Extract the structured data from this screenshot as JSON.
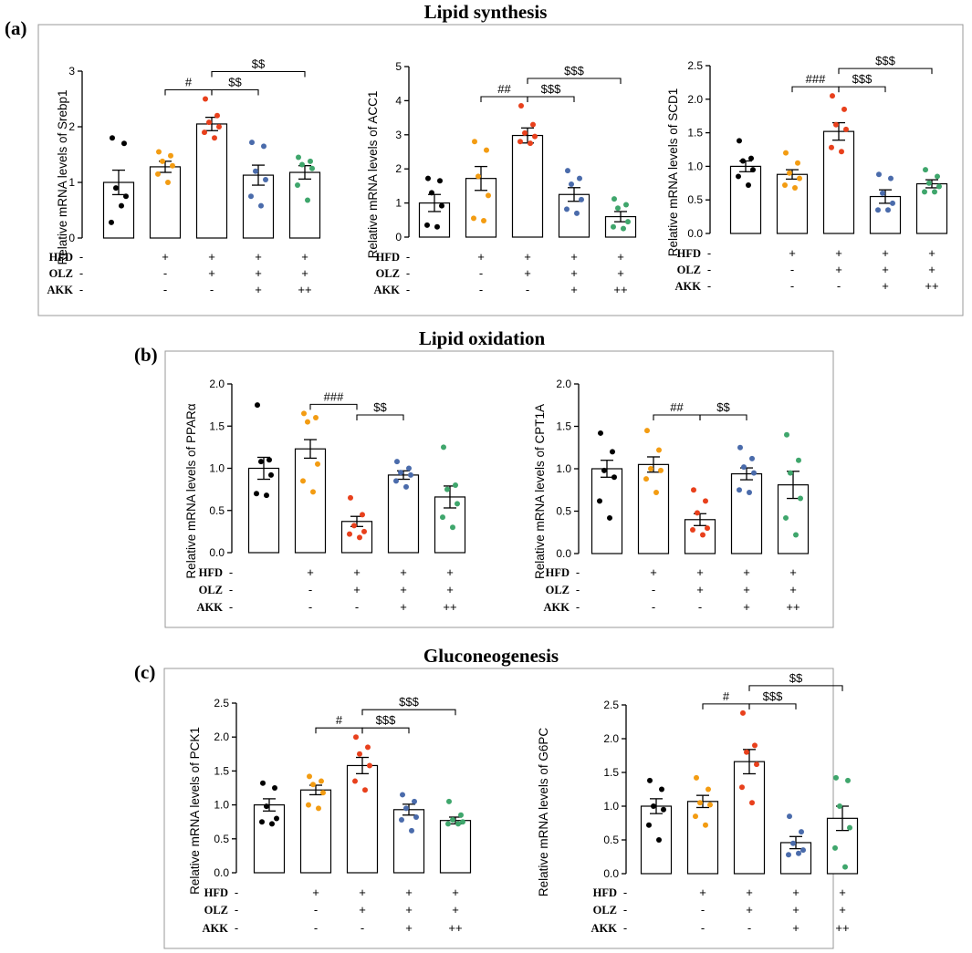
{
  "sections": [
    {
      "letter": "(a)",
      "title": "Lipid synthesis"
    },
    {
      "letter": "(b)",
      "title": "Lipid oxidation"
    },
    {
      "letter": "(c)",
      "title": "Gluconeogenesis"
    }
  ],
  "groups": {
    "colors": [
      "#000000",
      "#f39c12",
      "#e8401c",
      "#4a6bab",
      "#3fa66c"
    ],
    "row_labels": [
      "HFD",
      "OLZ",
      "AKK"
    ],
    "rows": [
      [
        "-",
        "+",
        "+",
        "+",
        "+"
      ],
      [
        "-",
        "-",
        "+",
        "+",
        "+"
      ],
      [
        "-",
        "-",
        "-",
        "+",
        "++"
      ]
    ]
  },
  "chart_data": [
    {
      "type": "bar",
      "section": 0,
      "ylabel": "Relative mRNA levels of Srebp1",
      "ylim": [
        0,
        3
      ],
      "yticks": [
        0,
        1,
        2,
        3
      ],
      "values": [
        1.0,
        1.28,
        2.05,
        1.13,
        1.18
      ],
      "errors": [
        0.22,
        0.1,
        0.12,
        0.18,
        0.12
      ],
      "points": [
        [
          1.8,
          1.7,
          0.9,
          0.75,
          0.28,
          0.58
        ],
        [
          1.55,
          1.48,
          1.38,
          1.3,
          1.15,
          1.0
        ],
        [
          2.5,
          2.2,
          2.08,
          2.0,
          1.9,
          1.8
        ],
        [
          1.72,
          1.65,
          1.2,
          1.05,
          0.75,
          0.58
        ],
        [
          1.45,
          1.38,
          1.32,
          1.25,
          0.95,
          0.68
        ]
      ],
      "significance": [
        {
          "from": 1,
          "to": 2,
          "label": "#",
          "level": 0
        },
        {
          "from": 2,
          "to": 3,
          "label": "$$",
          "level": 0
        },
        {
          "from": 2,
          "to": 4,
          "label": "$$",
          "level": 1
        }
      ]
    },
    {
      "type": "bar",
      "section": 0,
      "ylabel": "Relative mRNA levels of ACC1",
      "ylim": [
        0,
        5
      ],
      "yticks": [
        0,
        1,
        2,
        3,
        4,
        5
      ],
      "values": [
        1.0,
        1.72,
        2.98,
        1.25,
        0.6
      ],
      "errors": [
        0.25,
        0.35,
        0.22,
        0.2,
        0.15
      ],
      "points": [
        [
          1.72,
          1.65,
          1.3,
          0.92,
          0.35,
          0.3
        ],
        [
          2.8,
          2.55,
          1.78,
          1.22,
          0.55,
          0.48
        ],
        [
          3.85,
          3.3,
          3.05,
          2.95,
          2.8,
          2.75
        ],
        [
          1.95,
          1.72,
          1.55,
          1.1,
          0.82,
          0.7
        ],
        [
          1.12,
          0.95,
          0.85,
          0.45,
          0.3,
          0.25
        ]
      ],
      "significance": [
        {
          "from": 1,
          "to": 2,
          "label": "##",
          "level": 0
        },
        {
          "from": 2,
          "to": 3,
          "label": "$$$",
          "level": 0
        },
        {
          "from": 2,
          "to": 4,
          "label": "$$$",
          "level": 1
        }
      ]
    },
    {
      "type": "bar",
      "section": 0,
      "ylabel": "Relative mRNA levels of SCD1",
      "ylim": [
        0,
        2.5
      ],
      "yticks": [
        0,
        0.5,
        1.0,
        1.5,
        2.0,
        2.5
      ],
      "values": [
        1.0,
        0.88,
        1.52,
        0.55,
        0.74
      ],
      "errors": [
        0.08,
        0.07,
        0.13,
        0.1,
        0.06
      ],
      "points": [
        [
          1.38,
          1.12,
          1.08,
          0.95,
          0.85,
          0.72
        ],
        [
          1.2,
          1.05,
          0.9,
          0.82,
          0.72,
          0.68
        ],
        [
          2.05,
          1.85,
          1.62,
          1.55,
          1.28,
          1.22
        ],
        [
          0.88,
          0.82,
          0.6,
          0.45,
          0.35,
          0.35
        ],
        [
          0.95,
          0.85,
          0.75,
          0.7,
          0.62,
          0.62
        ]
      ],
      "significance": [
        {
          "from": 1,
          "to": 2,
          "label": "###",
          "level": 0
        },
        {
          "from": 2,
          "to": 3,
          "label": "$$$",
          "level": 0
        },
        {
          "from": 2,
          "to": 4,
          "label": "$$$",
          "level": 1
        }
      ]
    },
    {
      "type": "bar",
      "section": 1,
      "ylabel": "Relative mRNA levels of PPARα",
      "ylim": [
        0,
        2.0
      ],
      "yticks": [
        0,
        0.5,
        1.0,
        1.5,
        2.0
      ],
      "values": [
        1.0,
        1.23,
        0.37,
        0.92,
        0.66
      ],
      "errors": [
        0.13,
        0.11,
        0.06,
        0.05,
        0.13
      ],
      "points": [
        [
          1.75,
          1.1,
          1.08,
          0.92,
          0.7,
          0.68
        ],
        [
          1.65,
          1.6,
          1.55,
          1.05,
          0.85,
          0.72
        ],
        [
          0.65,
          0.45,
          0.32,
          0.25,
          0.22,
          0.18
        ],
        [
          1.08,
          1.0,
          0.95,
          0.92,
          0.85,
          0.78
        ],
        [
          1.25,
          0.8,
          0.75,
          0.58,
          0.42,
          0.3
        ]
      ],
      "significance": [
        {
          "from": 1,
          "to": 2,
          "label": "###",
          "level": 0
        },
        {
          "from": 2,
          "to": 3,
          "label": "$$",
          "level": 0
        }
      ]
    },
    {
      "type": "bar",
      "section": 1,
      "ylabel": "Relative mRNA levels of CPT1A",
      "ylim": [
        0,
        2.0
      ],
      "yticks": [
        0,
        0.5,
        1.0,
        1.5,
        2.0
      ],
      "values": [
        1.0,
        1.05,
        0.4,
        0.94,
        0.81
      ],
      "errors": [
        0.1,
        0.09,
        0.07,
        0.07,
        0.16
      ],
      "points": [
        [
          1.42,
          1.2,
          0.98,
          0.9,
          0.62,
          0.42
        ],
        [
          1.45,
          1.22,
          1.0,
          0.98,
          0.88,
          0.72
        ],
        [
          0.75,
          0.62,
          0.48,
          0.3,
          0.28,
          0.22
        ],
        [
          1.25,
          1.12,
          1.02,
          0.95,
          0.75,
          0.72
        ],
        [
          1.4,
          1.1,
          0.95,
          0.65,
          0.42,
          0.22
        ]
      ],
      "significance": [
        {
          "from": 1,
          "to": 2,
          "label": "##",
          "level": 0
        },
        {
          "from": 2,
          "to": 3,
          "label": "$$",
          "level": 0
        }
      ]
    },
    {
      "type": "bar",
      "section": 2,
      "ylabel": "Relative mRNA levels of PCK1",
      "ylim": [
        0,
        2.5
      ],
      "yticks": [
        0,
        0.5,
        1.0,
        1.5,
        2.0,
        2.5
      ],
      "values": [
        1.0,
        1.22,
        1.58,
        0.93,
        0.77
      ],
      "errors": [
        0.09,
        0.07,
        0.12,
        0.08,
        0.05
      ],
      "points": [
        [
          1.32,
          1.25,
          0.98,
          0.8,
          0.75,
          0.72
        ],
        [
          1.42,
          1.35,
          1.3,
          1.18,
          1.0,
          0.95
        ],
        [
          2.0,
          1.85,
          1.75,
          1.58,
          1.35,
          1.22
        ],
        [
          1.15,
          1.05,
          0.95,
          0.82,
          0.78,
          0.62
        ],
        [
          1.05,
          0.85,
          0.78,
          0.75,
          0.72,
          0.72
        ]
      ],
      "significance": [
        {
          "from": 1,
          "to": 2,
          "label": "#",
          "level": 0
        },
        {
          "from": 2,
          "to": 3,
          "label": "$$$",
          "level": 0
        },
        {
          "from": 2,
          "to": 4,
          "label": "$$$",
          "level": 1
        }
      ]
    },
    {
      "type": "bar",
      "section": 2,
      "ylabel": "Relative mRNA levels of G6PC",
      "ylim": [
        0,
        2.5
      ],
      "yticks": [
        0,
        0.5,
        1.0,
        1.5,
        2.0,
        2.5
      ],
      "values": [
        1.0,
        1.07,
        1.66,
        0.46,
        0.82
      ],
      "errors": [
        0.11,
        0.09,
        0.18,
        0.09,
        0.18
      ],
      "points": [
        [
          1.38,
          1.25,
          1.0,
          0.95,
          0.72,
          0.5
        ],
        [
          1.42,
          1.25,
          1.05,
          1.02,
          0.85,
          0.72
        ],
        [
          2.38,
          1.9,
          1.8,
          1.62,
          1.28,
          1.05
        ],
        [
          0.85,
          0.62,
          0.45,
          0.35,
          0.28,
          0.3
        ],
        [
          1.42,
          1.38,
          1.0,
          0.68,
          0.38,
          0.1
        ]
      ],
      "significance": [
        {
          "from": 1,
          "to": 2,
          "label": "#",
          "level": 0
        },
        {
          "from": 2,
          "to": 3,
          "label": "$$$",
          "level": 0
        },
        {
          "from": 2,
          "to": 4,
          "label": "$$",
          "level": 1
        }
      ]
    }
  ]
}
